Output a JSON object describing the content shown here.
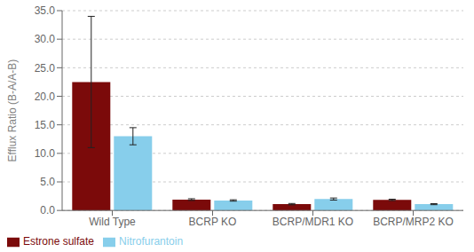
{
  "chart_data": {
    "type": "bar",
    "categories": [
      "Wild Type",
      "BCRP KO",
      "BCRP/MDR1 KO",
      "BCRP/MRP2 KO"
    ],
    "series": [
      {
        "name": "Estrone sulfate",
        "color": "#7B0A0A",
        "values": [
          22.5,
          1.9,
          1.1,
          1.85
        ],
        "errors": [
          11.5,
          0.15,
          0.12,
          0.12
        ]
      },
      {
        "name": "Nitrofurantoin",
        "color": "#87CEEB",
        "values": [
          13.0,
          1.75,
          2.0,
          1.1
        ],
        "errors": [
          1.5,
          0.12,
          0.18,
          0.09
        ]
      }
    ],
    "ylabel": "Efflux Ratio (B-A/A-B)",
    "ylim": [
      0,
      35
    ],
    "yticks": [
      {
        "value": 0.0,
        "label": "0.0"
      },
      {
        "value": 5.0,
        "label": "5.0"
      },
      {
        "value": 10.0,
        "label": "10.0"
      },
      {
        "value": 15.0,
        "label": "15.0"
      },
      {
        "value": 20.0,
        "label": "20.0"
      },
      {
        "value": 25.0,
        "label": "25.0"
      },
      {
        "value": 30.0,
        "label": "30.0"
      },
      {
        "value": 35.0,
        "label": "35.0"
      }
    ],
    "grid": true,
    "legend": "lower left"
  }
}
